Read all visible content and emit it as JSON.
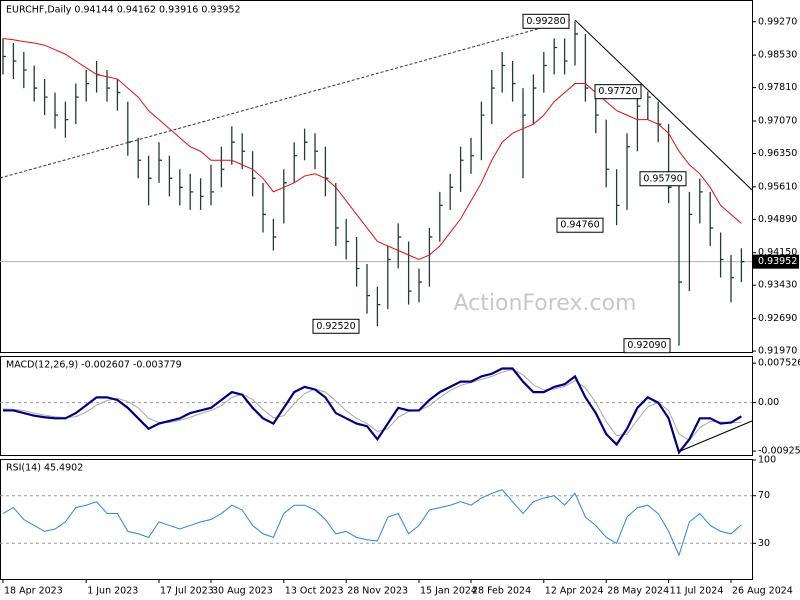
{
  "chart_data": [
    {
      "type": "ohlc",
      "title": "EURCHF,Daily  0.94144 0.94162 0.93916 0.93952",
      "watermark": "ActionForex.com",
      "color": "#1f3d33",
      "last_price": 0.93952,
      "ylim": [
        0.9195,
        0.9973
      ],
      "yticks": [
        {
          "value": 0.9927,
          "label": "0.99270"
        },
        {
          "value": 0.9853,
          "label": "0.98530"
        },
        {
          "value": 0.9781,
          "label": "0.97810"
        },
        {
          "value": 0.9707,
          "label": "0.97070"
        },
        {
          "value": 0.9635,
          "label": "0.96350"
        },
        {
          "value": 0.9561,
          "label": "0.95610"
        },
        {
          "value": 0.9489,
          "label": "0.94890"
        },
        {
          "value": 0.9415,
          "label": "0.94150"
        },
        {
          "value": 0.9343,
          "label": "0.93430"
        },
        {
          "value": 0.9269,
          "label": "0.92690"
        },
        {
          "value": 0.9197,
          "label": "0.91970"
        }
      ],
      "categories": [
        "18 Apr 2023",
        null,
        null,
        null,
        null,
        null,
        null,
        null,
        "1 Jun 2023",
        null,
        null,
        null,
        null,
        null,
        null,
        "17 Jul 2023",
        null,
        null,
        null,
        null,
        "30 Aug 2023",
        null,
        null,
        null,
        null,
        null,
        null,
        "13 Oct 2023",
        null,
        null,
        null,
        null,
        null,
        "28 Nov 2023",
        null,
        null,
        null,
        null,
        null,
        null,
        "15 Jan 2024",
        null,
        null,
        null,
        null,
        "28 Feb 2024",
        null,
        null,
        null,
        null,
        null,
        null,
        "12 Apr 2024",
        null,
        null,
        null,
        null,
        null,
        "28 May 2024",
        null,
        null,
        null,
        null,
        null,
        "11 Jul 2024",
        null,
        null,
        null,
        null,
        null,
        "26 Aug 2024",
        null
      ],
      "close": [
        0.985,
        0.984,
        0.982,
        0.978,
        0.976,
        0.972,
        0.971,
        0.976,
        0.979,
        0.981,
        0.978,
        0.977,
        0.966,
        0.962,
        0.958,
        0.962,
        0.958,
        0.956,
        0.955,
        0.954,
        0.955,
        0.96,
        0.966,
        0.964,
        0.958,
        0.95,
        0.945,
        0.957,
        0.963,
        0.966,
        0.964,
        0.958,
        0.947,
        0.944,
        0.938,
        0.932,
        0.93,
        0.94,
        0.945,
        0.933,
        0.935,
        0.945,
        0.952,
        0.956,
        0.962,
        0.963,
        0.972,
        0.978,
        0.983,
        0.979,
        0.972,
        0.978,
        0.983,
        0.987,
        0.984,
        0.99,
        0.978,
        0.972,
        0.96,
        0.952,
        0.965,
        0.974,
        0.976,
        0.97,
        0.956,
        0.935,
        0.95,
        0.955,
        0.947,
        0.94,
        0.936,
        0.93952
      ],
      "high": [
        0.989,
        0.988,
        0.986,
        0.983,
        0.98,
        0.977,
        0.975,
        0.979,
        0.982,
        0.984,
        0.982,
        0.98,
        0.975,
        0.967,
        0.963,
        0.966,
        0.963,
        0.96,
        0.959,
        0.958,
        0.961,
        0.965,
        0.9695,
        0.968,
        0.964,
        0.957,
        0.949,
        0.96,
        0.966,
        0.969,
        0.968,
        0.965,
        0.957,
        0.949,
        0.945,
        0.939,
        0.934,
        0.943,
        0.948,
        0.944,
        0.938,
        0.947,
        0.955,
        0.959,
        0.965,
        0.967,
        0.975,
        0.982,
        0.986,
        0.984,
        0.978,
        0.981,
        0.986,
        0.989,
        0.989,
        0.9928,
        0.99,
        0.977,
        0.971,
        0.96,
        0.968,
        0.976,
        0.9772,
        0.975,
        0.97,
        0.957,
        0.955,
        0.9579,
        0.955,
        0.946,
        0.941,
        0.9425
      ],
      "low": [
        0.981,
        0.98,
        0.978,
        0.975,
        0.972,
        0.969,
        0.967,
        0.97,
        0.975,
        0.977,
        0.975,
        0.973,
        0.963,
        0.958,
        0.952,
        0.957,
        0.954,
        0.952,
        0.951,
        0.951,
        0.952,
        0.956,
        0.961,
        0.96,
        0.954,
        0.946,
        0.942,
        0.948,
        0.957,
        0.962,
        0.96,
        0.954,
        0.943,
        0.94,
        0.934,
        0.928,
        0.9252,
        0.929,
        0.938,
        0.93,
        0.9305,
        0.934,
        0.944,
        0.951,
        0.955,
        0.959,
        0.962,
        0.97,
        0.977,
        0.975,
        0.958,
        0.97,
        0.977,
        0.981,
        0.981,
        0.983,
        0.975,
        0.968,
        0.956,
        0.9476,
        0.951,
        0.964,
        0.971,
        0.966,
        0.9525,
        0.9209,
        0.933,
        0.948,
        0.943,
        0.936,
        0.9305,
        0.935
      ],
      "ma": {
        "color": "#e01010",
        "values": [
          0.989,
          0.9887,
          0.9883,
          0.988,
          0.9875,
          0.9865,
          0.9855,
          0.984,
          0.9825,
          0.981,
          0.9805,
          0.98,
          0.978,
          0.976,
          0.973,
          0.971,
          0.969,
          0.967,
          0.965,
          0.964,
          0.962,
          0.962,
          0.962,
          0.961,
          0.96,
          0.958,
          0.955,
          0.956,
          0.957,
          0.9585,
          0.959,
          0.958,
          0.956,
          0.953,
          0.95,
          0.947,
          0.944,
          0.943,
          0.942,
          0.941,
          0.94,
          0.941,
          0.943,
          0.946,
          0.949,
          0.953,
          0.957,
          0.962,
          0.966,
          0.968,
          0.969,
          0.97,
          0.972,
          0.975,
          0.977,
          0.979,
          0.979,
          0.977,
          0.975,
          0.973,
          0.972,
          0.971,
          0.971,
          0.97,
          0.968,
          0.964,
          0.961,
          0.959,
          0.956,
          0.952,
          0.95,
          0.948
        ]
      },
      "annotations": [
        {
          "value": 0.9928,
          "label": "0.99280"
        },
        {
          "value": 0.9772,
          "label": "0.97720"
        },
        {
          "value": 0.9476,
          "label": "0.94760"
        },
        {
          "value": 0.9579,
          "label": "0.95790"
        },
        {
          "value": 0.9252,
          "label": "0.92520"
        },
        {
          "value": 0.9209,
          "label": "0.92090"
        }
      ]
    },
    {
      "type": "macd",
      "title": "MACD(12,26,9) -0.002607 -0.003779",
      "ylim": [
        -0.01,
        0.0087
      ],
      "yticks": [
        0.007526,
        {
          "value": 0,
          "label": "0.00"
        },
        -0.009252
      ],
      "reference_line": 0,
      "macd": {
        "color": "#000080",
        "values": [
          -0.0015,
          -0.0015,
          -0.002,
          -0.0025,
          -0.0028,
          -0.003,
          -0.003,
          -0.002,
          -0.0005,
          0.001,
          0.001,
          0.0005,
          -0.001,
          -0.003,
          -0.005,
          -0.004,
          -0.0035,
          -0.003,
          -0.002,
          -0.0015,
          -0.001,
          0.0005,
          0.002,
          0.0015,
          -0.001,
          -0.003,
          -0.004,
          -0.001,
          0.002,
          0.003,
          0.0025,
          0.001,
          -0.002,
          -0.003,
          -0.004,
          -0.0045,
          -0.007,
          -0.004,
          -0.001,
          -0.0015,
          -0.0015,
          0.0005,
          0.002,
          0.003,
          0.004,
          0.004,
          0.005,
          0.0055,
          0.0065,
          0.0065,
          0.004,
          0.002,
          0.002,
          0.003,
          0.0035,
          0.005,
          0.001,
          -0.002,
          -0.006,
          -0.008,
          -0.005,
          -0.001,
          0.001,
          0.0,
          -0.003,
          -0.0095,
          -0.007,
          -0.003,
          -0.003,
          -0.004,
          -0.0038,
          -0.002607
        ]
      },
      "signal": {
        "color": "#a8a8a8",
        "values": [
          -0.0012,
          -0.0013,
          -0.0015,
          -0.002,
          -0.0024,
          -0.0027,
          -0.0029,
          -0.0027,
          -0.0018,
          -0.0005,
          0.0004,
          0.0008,
          0.0002,
          -0.001,
          -0.003,
          -0.0038,
          -0.0038,
          -0.0034,
          -0.0028,
          -0.0021,
          -0.0015,
          -0.0006,
          0.001,
          0.0016,
          0.0006,
          -0.0013,
          -0.0029,
          -0.0025,
          -0.0002,
          0.0017,
          0.0026,
          0.002,
          0.0003,
          -0.0016,
          -0.003,
          -0.004,
          -0.0055,
          -0.005,
          -0.0028,
          -0.0017,
          -0.0015,
          -0.0006,
          0.001,
          0.0023,
          0.0033,
          0.0038,
          0.0044,
          0.005,
          0.0058,
          0.0063,
          0.0053,
          0.0034,
          0.0024,
          0.0026,
          0.0031,
          0.0042,
          0.0028,
          0.0,
          -0.0036,
          -0.0063,
          -0.006,
          -0.0033,
          -0.0008,
          0.0,
          -0.0015,
          -0.006,
          -0.0072,
          -0.0048,
          -0.0036,
          -0.0037,
          -0.0038,
          -0.003779
        ]
      }
    },
    {
      "type": "rsi",
      "title": "RSI(14) 45.4902",
      "ylim": [
        0,
        100
      ],
      "yticks": [
        100,
        70,
        30
      ],
      "levels": [
        70,
        30
      ],
      "color": "#2a86e0",
      "values": [
        55,
        60,
        50,
        45,
        40,
        42,
        48,
        60,
        62,
        65,
        55,
        55,
        40,
        38,
        35,
        48,
        45,
        42,
        45,
        48,
        50,
        55,
        62,
        58,
        45,
        38,
        35,
        55,
        62,
        62,
        58,
        50,
        38,
        40,
        35,
        33,
        32,
        52,
        55,
        38,
        45,
        58,
        60,
        62,
        65,
        62,
        68,
        72,
        75,
        65,
        55,
        65,
        68,
        70,
        62,
        72,
        52,
        45,
        35,
        30,
        52,
        60,
        62,
        55,
        40,
        20,
        48,
        55,
        45,
        40,
        38,
        45.4902
      ]
    }
  ]
}
